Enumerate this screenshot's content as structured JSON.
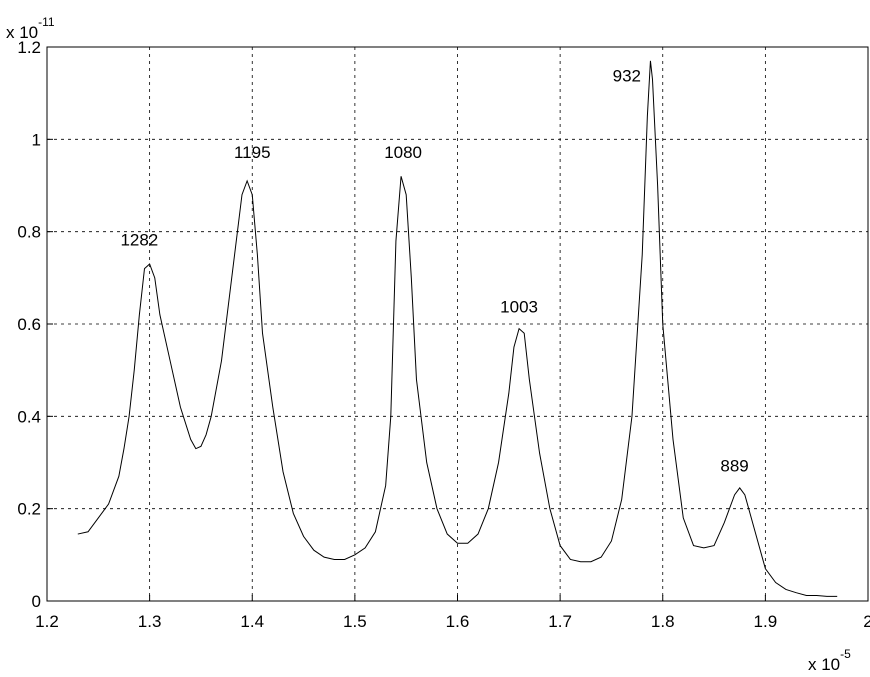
{
  "chart_data": {
    "type": "line",
    "x": [
      1.23,
      1.24,
      1.25,
      1.26,
      1.27,
      1.275,
      1.28,
      1.285,
      1.29,
      1.295,
      1.3,
      1.305,
      1.31,
      1.32,
      1.33,
      1.34,
      1.345,
      1.35,
      1.355,
      1.36,
      1.37,
      1.38,
      1.39,
      1.395,
      1.4,
      1.405,
      1.41,
      1.42,
      1.43,
      1.44,
      1.45,
      1.46,
      1.47,
      1.48,
      1.49,
      1.5,
      1.51,
      1.52,
      1.53,
      1.535,
      1.54,
      1.545,
      1.55,
      1.555,
      1.56,
      1.57,
      1.58,
      1.59,
      1.6,
      1.61,
      1.62,
      1.63,
      1.64,
      1.65,
      1.655,
      1.66,
      1.665,
      1.67,
      1.68,
      1.69,
      1.7,
      1.71,
      1.72,
      1.73,
      1.74,
      1.75,
      1.76,
      1.77,
      1.78,
      1.785,
      1.788,
      1.79,
      1.795,
      1.8,
      1.81,
      1.82,
      1.83,
      1.84,
      1.85,
      1.86,
      1.87,
      1.875,
      1.88,
      1.89,
      1.9,
      1.91,
      1.92,
      1.93,
      1.94,
      1.95,
      1.96,
      1.97
    ],
    "series": [
      {
        "color": "#000000",
        "values": [
          0.145,
          0.15,
          0.18,
          0.21,
          0.27,
          0.33,
          0.4,
          0.5,
          0.62,
          0.72,
          0.73,
          0.7,
          0.62,
          0.52,
          0.42,
          0.35,
          0.33,
          0.335,
          0.36,
          0.4,
          0.52,
          0.7,
          0.88,
          0.91,
          0.88,
          0.75,
          0.58,
          0.42,
          0.28,
          0.19,
          0.14,
          0.11,
          0.095,
          0.09,
          0.09,
          0.1,
          0.115,
          0.15,
          0.25,
          0.4,
          0.78,
          0.92,
          0.88,
          0.7,
          0.48,
          0.3,
          0.2,
          0.145,
          0.125,
          0.125,
          0.145,
          0.2,
          0.3,
          0.45,
          0.55,
          0.59,
          0.58,
          0.48,
          0.32,
          0.2,
          0.12,
          0.09,
          0.085,
          0.085,
          0.095,
          0.13,
          0.22,
          0.4,
          0.75,
          1.05,
          1.17,
          1.13,
          0.9,
          0.6,
          0.35,
          0.18,
          0.12,
          0.115,
          0.12,
          0.17,
          0.23,
          0.245,
          0.23,
          0.15,
          0.07,
          0.04,
          0.025,
          0.018,
          0.012,
          0.012,
          0.01,
          0.01
        ]
      }
    ],
    "xlim": [
      1.2,
      2
    ],
    "xticks": [
      1.2,
      1.3,
      1.4,
      1.5,
      1.6,
      1.7,
      1.8,
      1.9,
      2
    ],
    "ylim": [
      0,
      1.2
    ],
    "yticks": [
      0,
      0.2,
      0.4,
      0.6,
      0.8,
      1,
      1.2
    ],
    "grid": true,
    "x_multiplier": {
      "base": "x 10",
      "exponent": "-5"
    },
    "y_multiplier": {
      "base": "x 10",
      "exponent": "-11"
    },
    "annotations": [
      {
        "text": "1282",
        "x": 1.29,
        "y": 0.77
      },
      {
        "text": "1195",
        "x": 1.4,
        "y": 0.96
      },
      {
        "text": "1080",
        "x": 1.547,
        "y": 0.96
      },
      {
        "text": "1003",
        "x": 1.66,
        "y": 0.625
      },
      {
        "text": "932",
        "x": 1.765,
        "y": 1.125
      },
      {
        "text": "889",
        "x": 1.87,
        "y": 0.28
      }
    ]
  }
}
